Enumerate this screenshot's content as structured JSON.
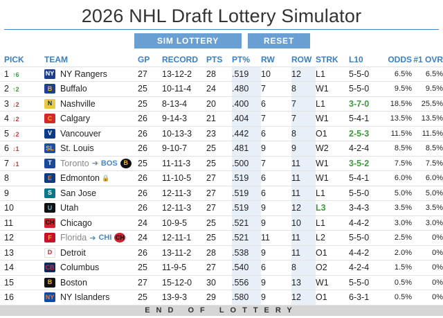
{
  "title": "2026 NHL Draft Lottery Simulator",
  "buttons": {
    "sim": "SIM LOTTERY",
    "reset": "RESET"
  },
  "columns": [
    "PICK",
    "TEAM",
    "GP",
    "RECORD",
    "PTS",
    "PT%",
    "RW",
    "ROW",
    "STRK",
    "L10",
    "ODDS",
    "#1 OVR"
  ],
  "colors": {
    "accent": "#3a7fc1",
    "button": "#6a9fd4",
    "up": "#3c9a3c",
    "down": "#c43b3b",
    "shade": "#e9eff8"
  },
  "rows": [
    {
      "pick": "1",
      "move": "↑6",
      "dir": "up",
      "team": "NY Rangers",
      "icon": "rangers-logo-icon",
      "logo": "NY",
      "lc": "#1d3c8c",
      "lt": "#fff",
      "gp": "27",
      "record": "13-12-2",
      "pts": "28",
      "pct": ".519",
      "rw": "10",
      "row": "12",
      "strk": "L1",
      "l10": "5-5-0",
      "l10g": false,
      "odds": "6.5%",
      "first": "6.5%"
    },
    {
      "pick": "2",
      "move": "↑2",
      "dir": "up",
      "team": "Buffalo",
      "icon": "sabres-logo-icon",
      "logo": "B",
      "lc": "#1f3f8f",
      "lt": "#fcb514",
      "gp": "25",
      "record": "10-11-4",
      "pts": "24",
      "pct": ".480",
      "rw": "7",
      "row": "8",
      "strk": "W1",
      "l10": "5-5-0",
      "l10g": false,
      "odds": "9.5%",
      "first": "9.5%"
    },
    {
      "pick": "3",
      "move": "↓2",
      "dir": "down",
      "team": "Nashville",
      "icon": "predators-logo-icon",
      "logo": "N",
      "lc": "#e8c94a",
      "lt": "#0b2c5c",
      "gp": "25",
      "record": "8-13-4",
      "pts": "20",
      "pct": ".400",
      "rw": "6",
      "row": "7",
      "strk": "L1",
      "l10": "3-7-0",
      "l10g": true,
      "odds": "18.5%",
      "first": "25.5%"
    },
    {
      "pick": "4",
      "move": "↓2",
      "dir": "down",
      "team": "Calgary",
      "icon": "flames-logo-icon",
      "logo": "C",
      "lc": "#d2272e",
      "lt": "#f6b81d",
      "gp": "26",
      "record": "9-14-3",
      "pts": "21",
      "pct": ".404",
      "rw": "7",
      "row": "7",
      "strk": "W1",
      "l10": "5-4-1",
      "l10g": false,
      "odds": "13.5%",
      "first": "13.5%"
    },
    {
      "pick": "5",
      "move": "↓2",
      "dir": "down",
      "team": "Vancouver",
      "icon": "canucks-logo-icon",
      "logo": "V",
      "lc": "#0a3a8c",
      "lt": "#fff",
      "gp": "26",
      "record": "10-13-3",
      "pts": "23",
      "pct": ".442",
      "rw": "6",
      "row": "8",
      "strk": "O1",
      "l10": "2-5-3",
      "l10g": true,
      "odds": "11.5%",
      "first": "11.5%"
    },
    {
      "pick": "6",
      "move": "↓1",
      "dir": "down",
      "team": "St. Louis",
      "icon": "blues-logo-icon",
      "logo": "SL",
      "lc": "#1d4fa6",
      "lt": "#fcb514",
      "gp": "26",
      "record": "9-10-7",
      "pts": "25",
      "pct": ".481",
      "rw": "9",
      "row": "9",
      "strk": "W2",
      "l10": "4-2-4",
      "l10g": false,
      "odds": "8.5%",
      "first": "8.5%"
    },
    {
      "pick": "7",
      "move": "↓1",
      "dir": "down",
      "team": "Toronto",
      "icon": "maple-leafs-logo-icon",
      "logo": "T",
      "lc": "#1b4a9c",
      "lt": "#fff",
      "grey": true,
      "via": "BOS",
      "viaIcon": "bruins-logo-icon",
      "viaLogo": "B",
      "viaLc": "#111",
      "viaLt": "#fcb514",
      "gp": "25",
      "record": "11-11-3",
      "pts": "25",
      "pct": ".500",
      "rw": "7",
      "row": "11",
      "strk": "W1",
      "l10": "3-5-2",
      "l10g": true,
      "odds": "7.5%",
      "first": "7.5%"
    },
    {
      "pick": "8",
      "move": "",
      "dir": "",
      "team": "Edmonton",
      "icon": "oilers-logo-icon",
      "logo": "E",
      "lc": "#0b3b85",
      "lt": "#f47a20",
      "lock": true,
      "gp": "26",
      "record": "11-10-5",
      "pts": "27",
      "pct": ".519",
      "rw": "6",
      "row": "11",
      "strk": "W1",
      "l10": "5-4-1",
      "l10g": false,
      "odds": "6.0%",
      "first": "6.0%"
    },
    {
      "pick": "9",
      "move": "",
      "dir": "",
      "team": "San Jose",
      "icon": "sharks-logo-icon",
      "logo": "S",
      "lc": "#0b7686",
      "lt": "#fff",
      "gp": "26",
      "record": "12-11-3",
      "pts": "27",
      "pct": ".519",
      "rw": "6",
      "row": "11",
      "strk": "L1",
      "l10": "5-5-0",
      "l10g": false,
      "odds": "5.0%",
      "first": "5.0%"
    },
    {
      "pick": "10",
      "move": "",
      "dir": "",
      "team": "Utah",
      "icon": "utah-logo-icon",
      "logo": "U",
      "lc": "#111",
      "lt": "#6ab8e0",
      "gp": "26",
      "record": "12-11-3",
      "pts": "27",
      "pct": ".519",
      "rw": "9",
      "row": "12",
      "strk": "L3",
      "strkg": true,
      "l10": "3-4-3",
      "l10g": false,
      "odds": "3.5%",
      "first": "3.5%"
    },
    {
      "pick": "11",
      "move": "",
      "dir": "",
      "team": "Chicago",
      "icon": "blackhawks-logo-icon",
      "logo": "CH",
      "lc": "#cf202e",
      "lt": "#111",
      "gp": "24",
      "record": "10-9-5",
      "pts": "25",
      "pct": ".521",
      "rw": "9",
      "row": "10",
      "strk": "L1",
      "l10": "4-4-2",
      "l10g": false,
      "odds": "3.0%",
      "first": "3.0%"
    },
    {
      "pick": "12",
      "move": "",
      "dir": "",
      "team": "Florida",
      "icon": "panthers-logo-icon",
      "logo": "F",
      "lc": "#c8102e",
      "lt": "#fcb514",
      "grey": true,
      "via": "CHI",
      "viaIcon": "blackhawks-logo-icon",
      "viaLogo": "CH",
      "viaLc": "#cf202e",
      "viaLt": "#111",
      "gp": "24",
      "record": "12-11-1",
      "pts": "25",
      "pct": ".521",
      "rw": "11",
      "row": "11",
      "strk": "L2",
      "l10": "5-5-0",
      "l10g": false,
      "odds": "2.5%",
      "first": "0%"
    },
    {
      "pick": "13",
      "move": "",
      "dir": "",
      "team": "Detroit",
      "icon": "red-wings-logo-icon",
      "logo": "D",
      "lc": "#fff",
      "lt": "#d1202f",
      "gp": "26",
      "record": "13-11-2",
      "pts": "28",
      "pct": ".538",
      "rw": "9",
      "row": "11",
      "strk": "O1",
      "l10": "4-4-2",
      "l10g": false,
      "odds": "2.0%",
      "first": "0%"
    },
    {
      "pick": "14",
      "move": "",
      "dir": "",
      "team": "Columbus",
      "icon": "blue-jackets-logo-icon",
      "logo": "CB",
      "lc": "#0b2a5c",
      "lt": "#d12a2f",
      "gp": "25",
      "record": "11-9-5",
      "pts": "27",
      "pct": ".540",
      "rw": "6",
      "row": "8",
      "strk": "O2",
      "l10": "4-2-4",
      "l10g": false,
      "odds": "1.5%",
      "first": "0%"
    },
    {
      "pick": "15",
      "move": "",
      "dir": "",
      "team": "Boston",
      "icon": "bruins-logo-icon",
      "logo": "B",
      "lc": "#111",
      "lt": "#fcb514",
      "gp": "27",
      "record": "15-12-0",
      "pts": "30",
      "pct": ".556",
      "rw": "9",
      "row": "13",
      "strk": "W1",
      "l10": "5-5-0",
      "l10g": false,
      "odds": "0.5%",
      "first": "0%"
    },
    {
      "pick": "16",
      "move": "",
      "dir": "",
      "team": "NY Islanders",
      "icon": "islanders-logo-icon",
      "logo": "NY",
      "lc": "#0b4ba1",
      "lt": "#f47a20",
      "gp": "25",
      "record": "13-9-3",
      "pts": "29",
      "pct": ".580",
      "rw": "9",
      "row": "12",
      "strk": "O1",
      "l10": "6-3-1",
      "l10g": false,
      "odds": "0.5%",
      "first": "0%"
    }
  ],
  "end_label": "END OF LOTTERY"
}
